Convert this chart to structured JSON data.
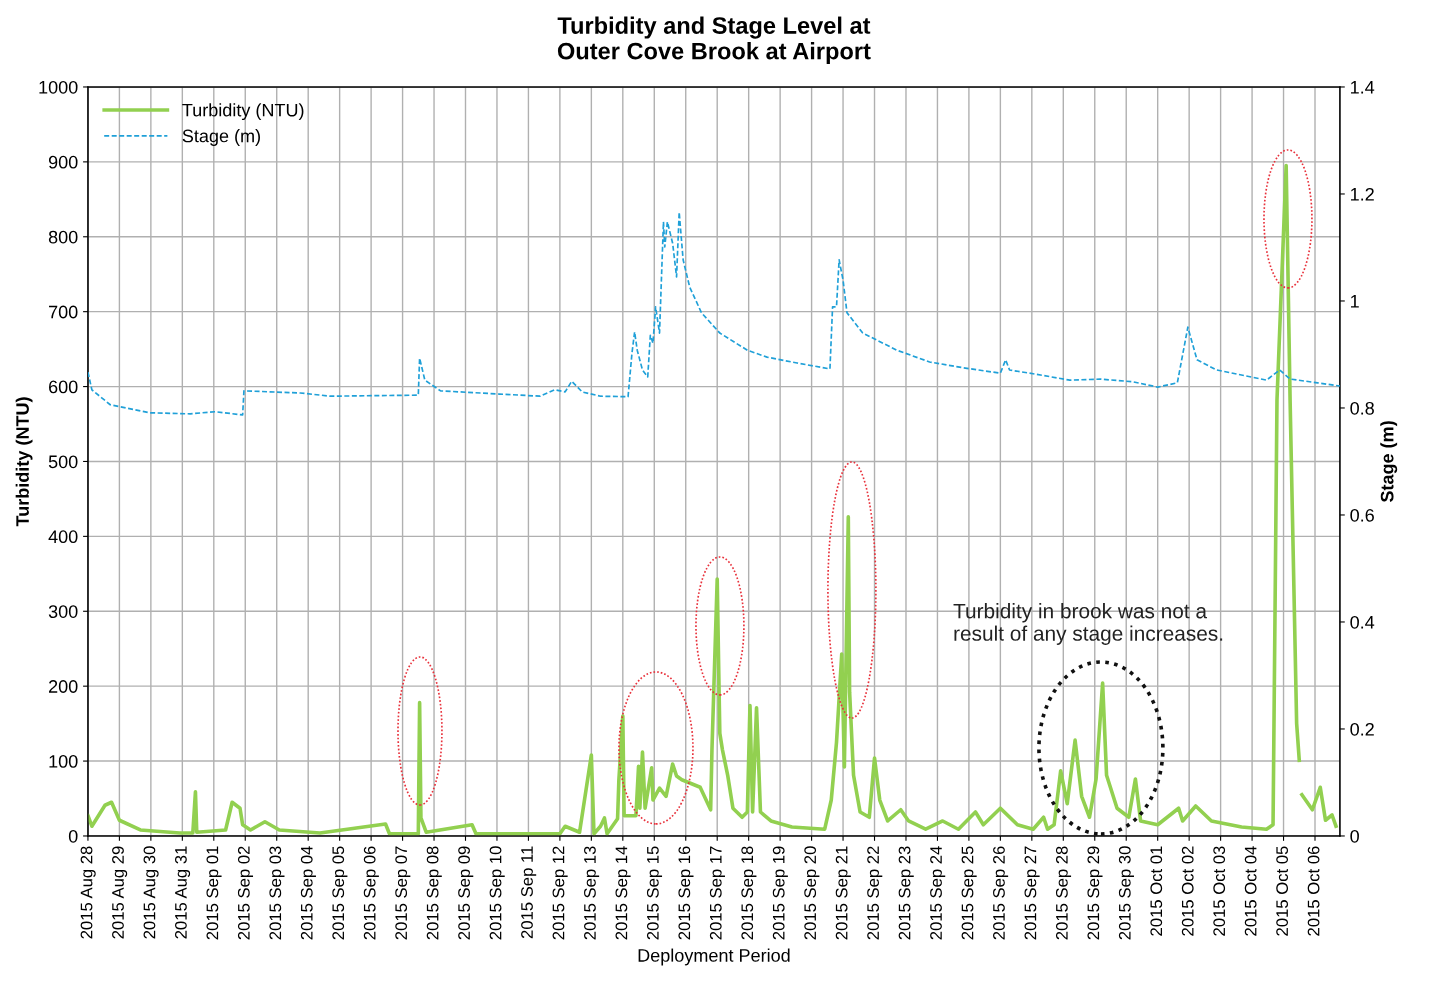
{
  "chart_data": {
    "type": "line",
    "title": "Turbidity and Stage Level at\nOuter Cove Brook at Airport",
    "xlabel": "Deployment Period",
    "ylabel": "Turbidity (NTU)",
    "y2label": "Stage (m)",
    "annotations": [
      "Turbidity in brook was not a\nresult of any stage increases."
    ],
    "xlim": [
      "2015-08-28",
      "2015-10-06T19:00"
    ],
    "xticks": [
      {
        "value": "2015-08-28",
        "label": "2015 Aug 28"
      },
      {
        "value": "2015-08-29",
        "label": "2015 Aug 29"
      },
      {
        "value": "2015-08-30",
        "label": "2015 Aug 30"
      },
      {
        "value": "2015-08-31",
        "label": "2015 Aug 31"
      },
      {
        "value": "2015-09-01",
        "label": "2015 Sep 01"
      },
      {
        "value": "2015-09-02",
        "label": "2015 Sep 02"
      },
      {
        "value": "2015-09-03",
        "label": "2015 Sep 03"
      },
      {
        "value": "2015-09-04",
        "label": "2015 Sep 04"
      },
      {
        "value": "2015-09-05",
        "label": "2015 Sep 05"
      },
      {
        "value": "2015-09-06",
        "label": "2015 Sep 06"
      },
      {
        "value": "2015-09-07",
        "label": "2015 Sep 07"
      },
      {
        "value": "2015-09-08",
        "label": "2015 Sep 08"
      },
      {
        "value": "2015-09-09",
        "label": "2015 Sep 09"
      },
      {
        "value": "2015-09-10",
        "label": "2015 Sep 10"
      },
      {
        "value": "2015-09-11",
        "label": "2015 Sep 11"
      },
      {
        "value": "2015-09-12",
        "label": "2015 Sep 12"
      },
      {
        "value": "2015-09-13",
        "label": "2015 Sep 13"
      },
      {
        "value": "2015-09-14",
        "label": "2015 Sep 14"
      },
      {
        "value": "2015-09-15",
        "label": "2015 Sep 15"
      },
      {
        "value": "2015-09-16",
        "label": "2015 Sep 16"
      },
      {
        "value": "2015-09-17",
        "label": "2015 Sep 17"
      },
      {
        "value": "2015-09-18",
        "label": "2015 Sep 18"
      },
      {
        "value": "2015-09-19",
        "label": "2015 Sep 19"
      },
      {
        "value": "2015-09-20",
        "label": "2015 Sep 20"
      },
      {
        "value": "2015-09-21",
        "label": "2015 Sep 21"
      },
      {
        "value": "2015-09-22",
        "label": "2015 Sep 22"
      },
      {
        "value": "2015-09-23",
        "label": "2015 Sep 23"
      },
      {
        "value": "2015-09-24",
        "label": "2015 Sep 24"
      },
      {
        "value": "2015-09-25",
        "label": "2015 Sep 25"
      },
      {
        "value": "2015-09-26",
        "label": "2015 Sep 26"
      },
      {
        "value": "2015-09-27",
        "label": "2015 Sep 27"
      },
      {
        "value": "2015-09-28",
        "label": "2015 Sep 28"
      },
      {
        "value": "2015-09-29",
        "label": "2015 Sep 29"
      },
      {
        "value": "2015-09-30",
        "label": "2015 Sep 30"
      },
      {
        "value": "2015-10-01",
        "label": "2015 Oct 01"
      },
      {
        "value": "2015-10-02",
        "label": "2015 Oct 02"
      },
      {
        "value": "2015-10-03",
        "label": "2015 Oct 03"
      },
      {
        "value": "2015-10-04",
        "label": "2015 Oct 04"
      },
      {
        "value": "2015-10-05",
        "label": "2015 Oct 05"
      },
      {
        "value": "2015-10-06",
        "label": "2015 Oct 06"
      }
    ],
    "ylim": [
      0,
      1000
    ],
    "yticks": [
      0,
      100,
      200,
      300,
      400,
      500,
      600,
      700,
      800,
      900,
      1000
    ],
    "y2lim": [
      0,
      1.4
    ],
    "y2ticks": [
      0,
      0.2,
      0.4,
      0.6,
      0.8,
      1,
      1.2,
      1.4
    ],
    "grid": true,
    "legend": "top left",
    "series": [
      {
        "name": "Turbidity (NTU)",
        "color": "#92d050",
        "line_style": "solid",
        "axis": "y",
        "x": [
          "2015-08-28T00:00",
          "2015-08-28T03:00",
          "2015-08-28T13:00",
          "2015-08-28T18:00",
          "2015-08-29T00:00",
          "2015-08-29T16:00",
          "2015-08-30T22:00",
          "2015-08-31T08:00",
          "2015-08-31T10:00",
          "2015-08-31T11:00",
          "2015-09-01T09:00",
          "2015-09-01T14:00",
          "2015-09-01T20:00",
          "2015-09-01T22:00",
          "2015-09-02T04:00",
          "2015-09-02T15:00",
          "2015-09-03T02:00",
          "2015-09-04T09:00",
          "2015-09-06T11:00",
          "2015-09-06T14:00",
          "2015-09-07T12:00",
          "2015-09-07T13:00",
          "2015-09-07T14:00",
          "2015-09-07T18:00",
          "2015-09-09T05:00",
          "2015-09-09T08:00",
          "2015-09-12T00:00",
          "2015-09-12T04:00",
          "2015-09-12T15:00",
          "2015-09-13T00:00",
          "2015-09-13T02:00",
          "2015-09-13T07:00",
          "2015-09-13T10:00",
          "2015-09-13T12:00",
          "2015-09-13T20:00",
          "2015-09-13T21:00",
          "2015-09-14T00:00",
          "2015-09-14T01:00",
          "2015-09-14T10:00",
          "2015-09-14T12:00",
          "2015-09-14T13:00",
          "2015-09-14T15:00",
          "2015-09-14T17:00",
          "2015-09-14T22:00",
          "2015-09-14T23:00",
          "2015-09-15T04:00",
          "2015-09-15T09:00",
          "2015-09-15T14:00",
          "2015-09-15T17:00",
          "2015-09-15T21:00",
          "2015-09-16T11:00",
          "2015-09-16T19:00",
          "2015-09-16T20:00",
          "2015-09-17T00:00",
          "2015-09-17T01:00",
          "2015-09-17T02:00",
          "2015-09-17T04:00",
          "2015-09-17T08:00",
          "2015-09-17T12:00",
          "2015-09-17T19:00",
          "2015-09-17T23:00",
          "2015-09-18T01:00",
          "2015-09-18T03:00",
          "2015-09-18T06:00",
          "2015-09-18T09:00",
          "2015-09-18T17:00",
          "2015-09-19T09:00",
          "2015-09-20T10:00",
          "2015-09-20T15:00",
          "2015-09-20T19:00",
          "2015-09-20T23:00",
          "2015-09-21T01:00",
          "2015-09-21T04:00",
          "2015-09-21T05:00",
          "2015-09-21T08:00",
          "2015-09-21T13:00",
          "2015-09-21T20:00",
          "2015-09-22T00:00",
          "2015-09-22T04:00",
          "2015-09-22T10:00",
          "2015-09-22T20:00",
          "2015-09-23T02:00",
          "2015-09-23T15:00",
          "2015-09-24T04:00",
          "2015-09-24T16:00",
          "2015-09-25T05:00",
          "2015-09-25T11:00",
          "2015-09-26T00:00",
          "2015-09-26T13:00",
          "2015-09-27T01:00",
          "2015-09-27T09:00",
          "2015-09-27T12:00",
          "2015-09-27T17:00",
          "2015-09-27T22:00",
          "2015-09-28T03:00",
          "2015-09-28T09:00",
          "2015-09-28T14:00",
          "2015-09-28T20:00",
          "2015-09-29T01:00",
          "2015-09-29T06:00",
          "2015-09-29T09:00",
          "2015-09-29T17:00",
          "2015-09-30T02:00",
          "2015-09-30T07:00",
          "2015-09-30T11:00",
          "2015-10-01T00:00",
          "2015-10-01T16:00",
          "2015-10-01T19:00",
          "2015-10-02T05:00",
          "2015-10-02T17:00",
          "2015-10-03T16:00",
          "2015-10-04T11:00",
          "2015-10-04T16:00",
          "2015-10-04T19:00",
          "2015-10-05T02:00",
          "2015-10-05T05:00",
          "2015-10-05T10:00",
          "2015-10-05T12:00",
          "2015-10-05T13:00",
          "2015-10-05T14:00",
          "2015-10-05T22:00",
          "2015-10-06T04:00",
          "2015-10-06T08:00",
          "2015-10-06T13:00",
          "2015-10-06T16:00"
        ],
        "values": [
          27,
          13,
          41,
          45,
          21,
          8,
          4,
          4,
          59,
          5,
          8,
          45,
          37,
          15,
          8,
          19,
          8,
          4,
          16,
          3,
          3,
          178,
          24,
          5,
          15,
          3,
          3,
          13,
          5,
          108,
          3,
          13,
          24,
          3,
          23,
          75,
          160,
          27,
          27,
          93,
          37,
          112,
          37,
          91,
          48,
          64,
          53,
          96,
          80,
          75,
          65,
          35,
          115,
          343,
          238,
          137,
          115,
          81,
          37,
          25,
          32,
          174,
          32,
          171,
          32,
          20,
          12,
          9,
          48,
          125,
          243,
          92,
          426,
          192,
          81,
          32,
          25,
          104,
          48,
          20,
          35,
          20,
          9,
          20,
          9,
          32,
          15,
          37,
          15,
          9,
          25,
          9,
          15,
          87,
          43,
          128,
          53,
          25,
          76,
          204,
          81,
          37,
          25,
          76,
          20,
          15,
          37,
          20,
          40,
          20,
          12,
          9,
          15,
          582,
          895,
          582,
          150,
          101,
          null,
          55,
          35,
          65,
          21,
          28,
          13
        ]
      },
      {
        "name": "Stage (m)",
        "color": "#1fa0d8",
        "line_style": "dashed",
        "axis": "y2",
        "x": [
          "2015-08-28T00:00",
          "2015-08-28T03:00",
          "2015-08-28T17:00",
          "2015-08-29T23:00",
          "2015-08-31T06:00",
          "2015-09-01T01:00",
          "2015-09-01T22:00",
          "2015-09-01T23:00",
          "2015-09-03T18:00",
          "2015-09-04T17:00",
          "2015-09-07T12:00",
          "2015-09-07T13:00",
          "2015-09-07T17:00",
          "2015-09-08T05:00",
          "2015-09-10T02:00",
          "2015-09-11T09:00",
          "2015-09-11T20:00",
          "2015-09-12T04:00",
          "2015-09-12T09:00",
          "2015-09-12T17:00",
          "2015-09-13T07:00",
          "2015-09-14T04:00",
          "2015-09-14T07:00",
          "2015-09-14T09:00",
          "2015-09-14T11:00",
          "2015-09-14T15:00",
          "2015-09-14T19:00",
          "2015-09-14T21:00",
          "2015-09-14T23:00",
          "2015-09-15T01:00",
          "2015-09-15T04:00",
          "2015-09-15T07:00",
          "2015-09-15T08:00",
          "2015-09-15T10:00",
          "2015-09-15T14:00",
          "2015-09-15T17:00",
          "2015-09-15T19:00",
          "2015-09-15T22:00",
          "2015-09-16T03:00",
          "2015-09-16T12:00",
          "2015-09-17T02:00",
          "2015-09-17T23:00",
          "2015-09-18T14:00",
          "2015-09-19T13:00",
          "2015-09-20T14:00",
          "2015-09-20T16:00",
          "2015-09-20T19:00",
          "2015-09-20T21:00",
          "2015-09-21T00:00",
          "2015-09-21T03:00",
          "2015-09-21T15:00",
          "2015-09-22T17:00",
          "2015-09-23T18:00",
          "2015-09-24T20:00",
          "2015-09-26T00:00",
          "2015-09-26T04:00",
          "2015-09-26T07:00",
          "2015-09-27T01:00",
          "2015-09-28T05:00",
          "2015-09-29T04:00",
          "2015-09-30T05:00",
          "2015-10-01T00:00",
          "2015-10-01T15:00",
          "2015-10-01T23:00",
          "2015-10-02T06:00",
          "2015-10-02T21:00",
          "2015-10-04T11:00",
          "2015-10-04T21:00",
          "2015-10-05T05:00",
          "2015-10-06T02:00",
          "2015-10-06T19:00"
        ],
        "values": [
          0.867,
          0.834,
          0.806,
          0.791,
          0.789,
          0.793,
          0.787,
          0.832,
          0.828,
          0.822,
          0.824,
          0.893,
          0.852,
          0.832,
          0.826,
          0.822,
          0.834,
          0.83,
          0.85,
          0.83,
          0.822,
          0.821,
          0.903,
          0.942,
          0.908,
          0.871,
          0.858,
          0.936,
          0.921,
          0.989,
          0.94,
          1.148,
          1.101,
          1.148,
          1.108,
          1.045,
          1.166,
          1.077,
          1.026,
          0.978,
          0.94,
          0.908,
          0.895,
          0.884,
          0.873,
          0.989,
          0.989,
          1.077,
          1.039,
          0.978,
          0.94,
          0.908,
          0.886,
          0.875,
          0.865,
          0.89,
          0.871,
          0.864,
          0.852,
          0.854,
          0.849,
          0.839,
          0.847,
          0.951,
          0.89,
          0.871,
          0.852,
          0.871,
          0.854,
          0.847,
          0.841
        ]
      }
    ]
  }
}
